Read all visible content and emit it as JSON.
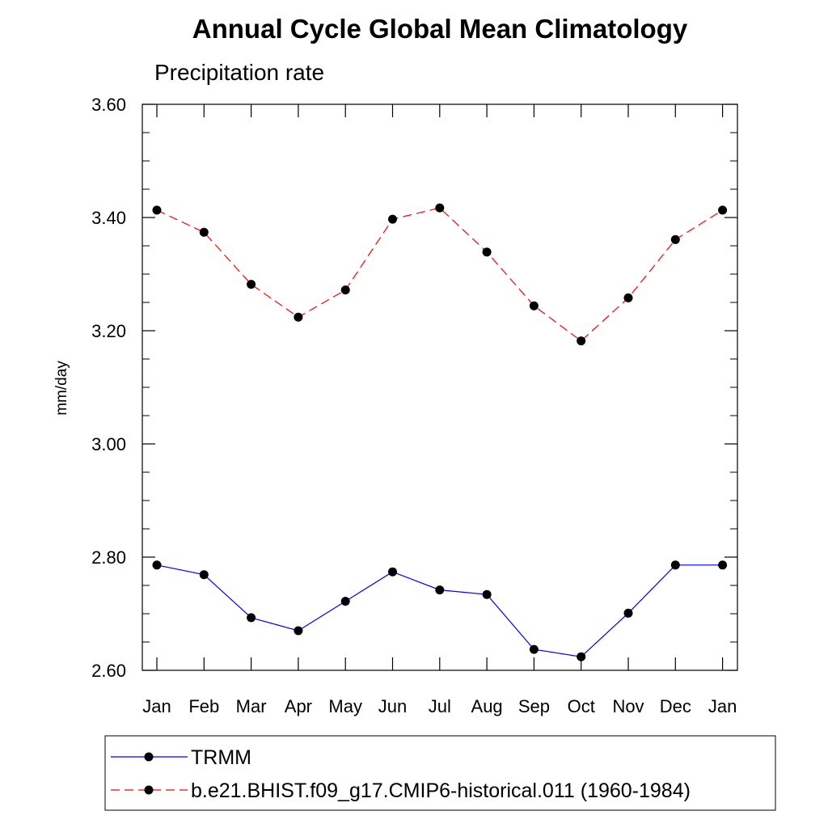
{
  "chart_data": {
    "type": "line",
    "title": "Annual Cycle Global Mean Climatology",
    "subtitle": "Precipitation rate",
    "xlabel": "",
    "ylabel": "mm/day",
    "categories": [
      "Jan",
      "Feb",
      "Mar",
      "Apr",
      "May",
      "Jun",
      "Jul",
      "Aug",
      "Sep",
      "Oct",
      "Nov",
      "Dec",
      "Jan"
    ],
    "ylim": [
      2.6,
      3.6
    ],
    "yticks": [
      "2.60",
      "2.80",
      "3.00",
      "3.20",
      "3.40",
      "3.60"
    ],
    "grid": false,
    "legend_position": "bottom",
    "series": [
      {
        "name": "TRMM",
        "color": "#0000ff",
        "line_style": "solid",
        "marker": "filled-circle",
        "values": [
          2.786,
          2.769,
          2.693,
          2.67,
          2.722,
          2.774,
          2.742,
          2.734,
          2.637,
          2.624,
          2.701,
          2.786,
          2.786
        ]
      },
      {
        "name": "b.e21.BHIST.f09_g17.CMIP6-historical.011 (1960-1984)",
        "color": "#ff0000",
        "line_style": "dashed",
        "marker": "filled-circle",
        "values": [
          3.413,
          3.374,
          3.282,
          3.224,
          3.272,
          3.397,
          3.417,
          3.339,
          3.244,
          3.182,
          3.258,
          3.361,
          3.413
        ]
      }
    ]
  }
}
